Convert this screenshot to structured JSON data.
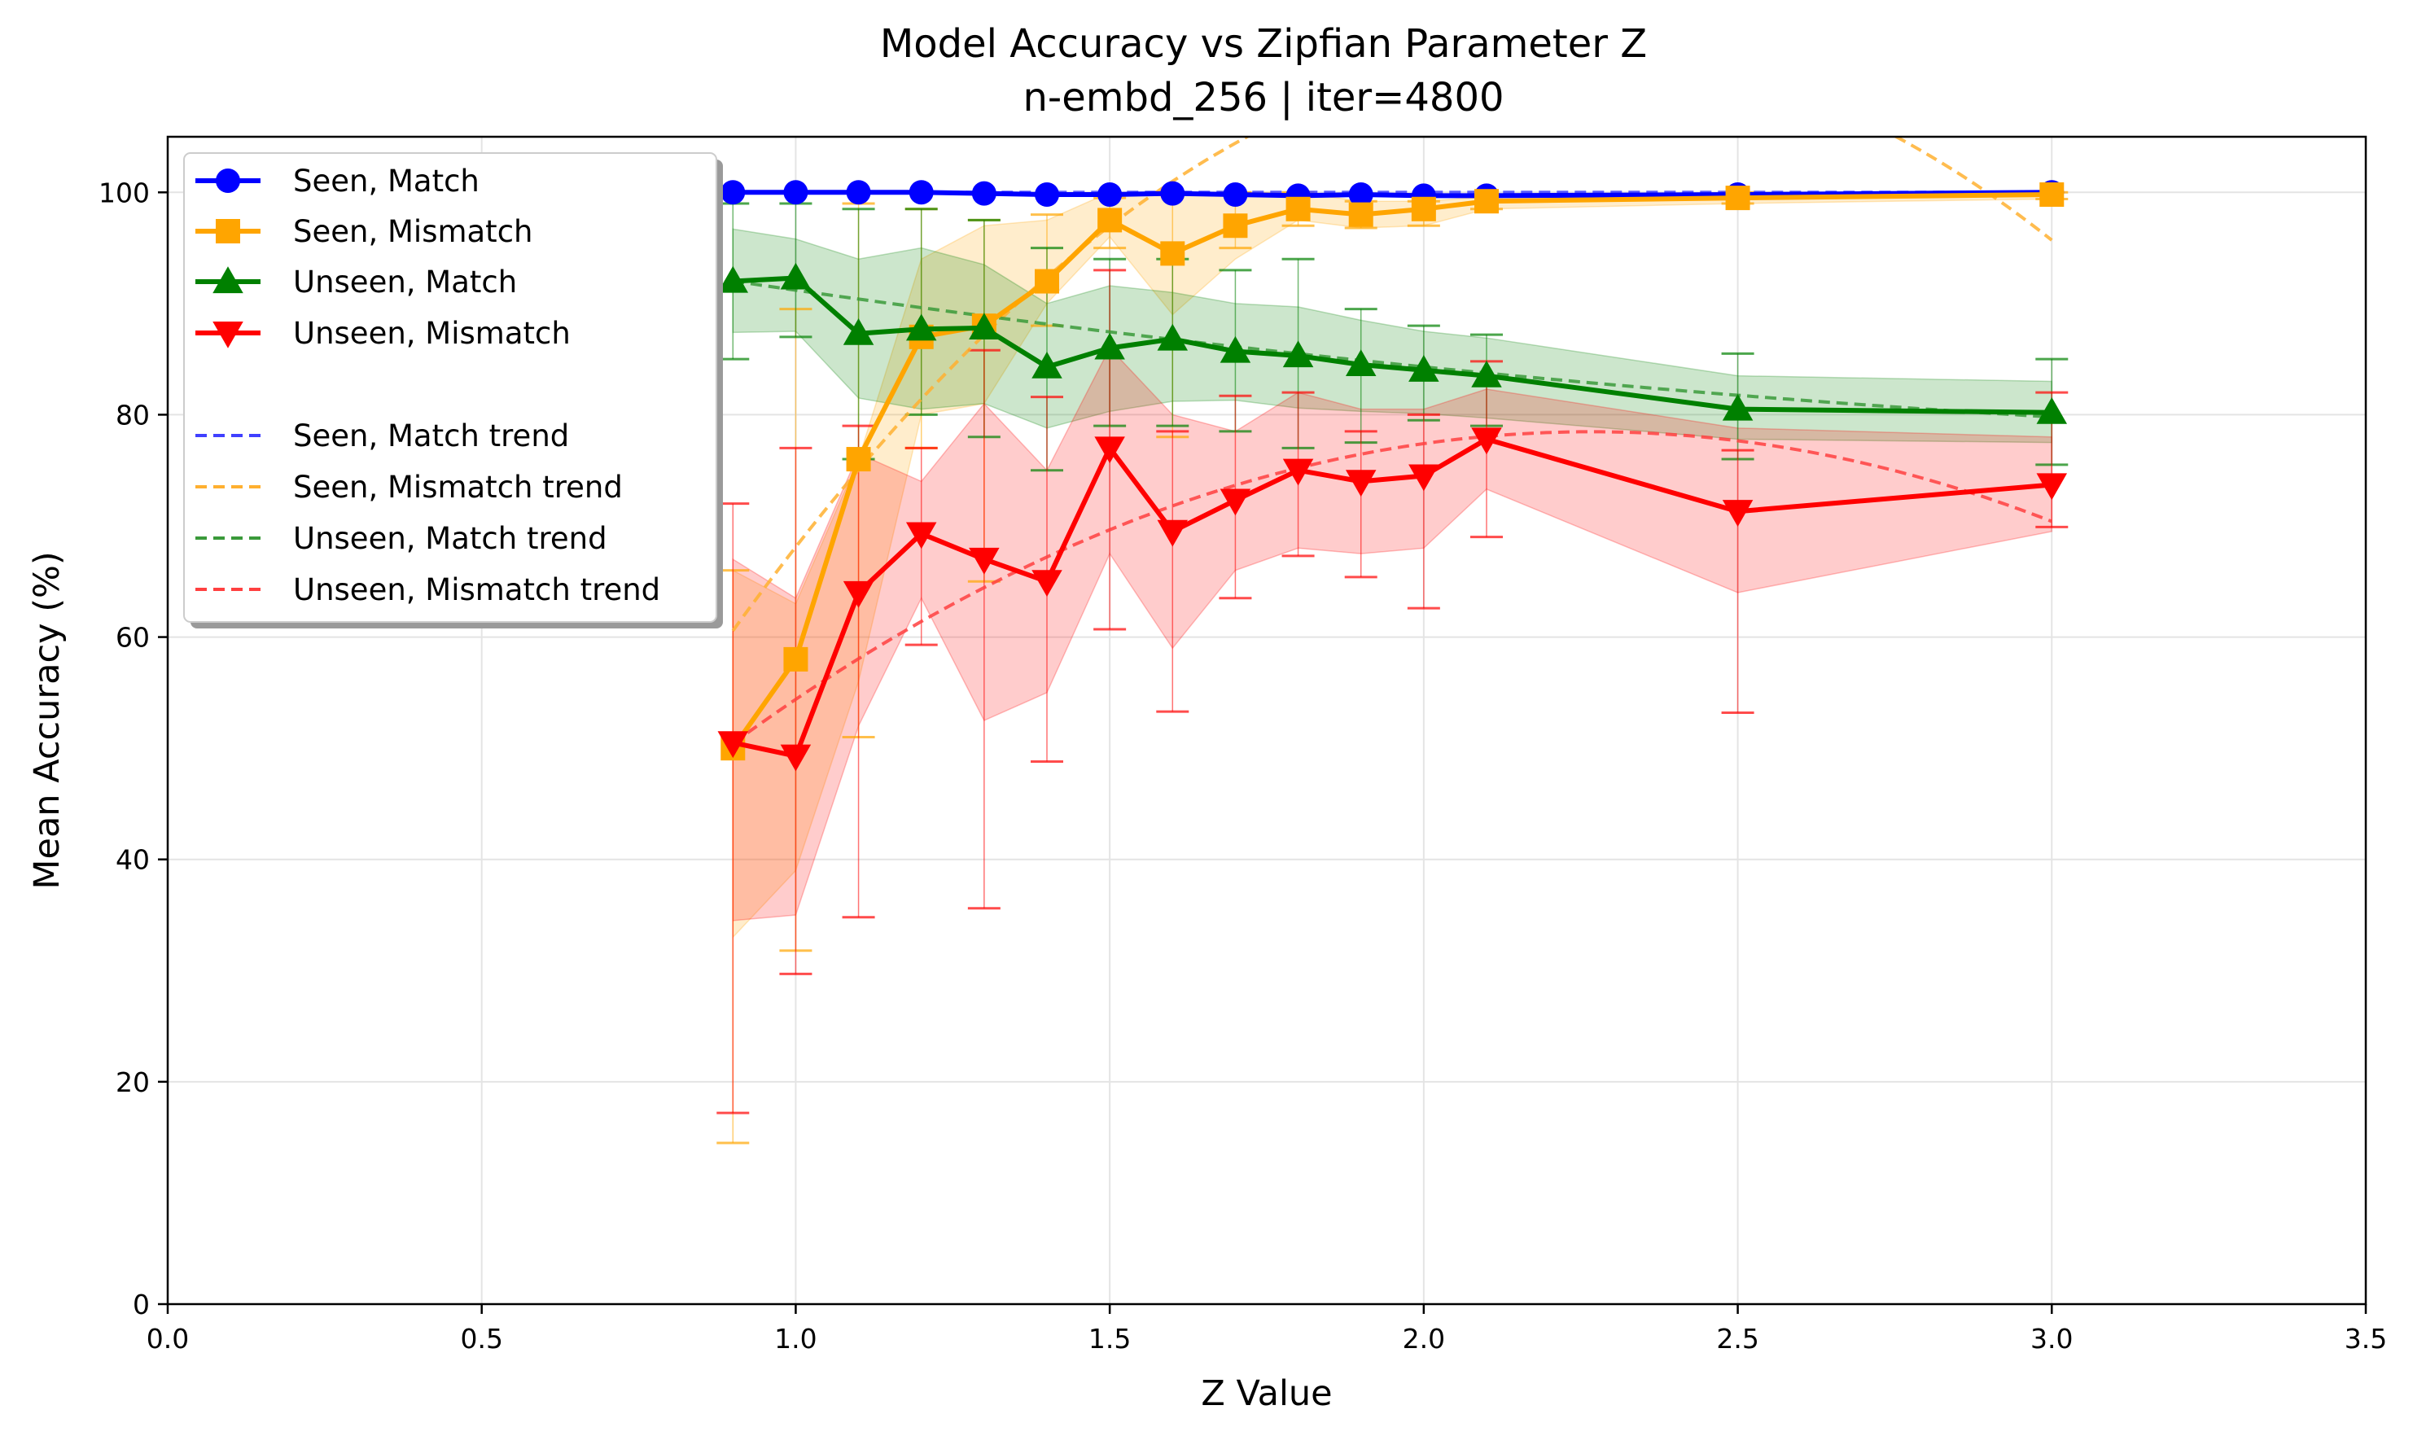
{
  "chart_data": {
    "type": "line",
    "title": "Model Accuracy vs Zipfian Parameter Z",
    "subtitle": "n-embd_256 | iter=4800",
    "xlabel": "Z Value",
    "ylabel": "Mean Accuracy (%)",
    "xlim": [
      0,
      3.5
    ],
    "ylim": [
      0,
      105
    ],
    "xticks": [
      0.0,
      0.5,
      1.0,
      1.5,
      2.0,
      2.5,
      3.0,
      3.5
    ],
    "xtick_labels": [
      "0.0",
      "0.5",
      "1.0",
      "1.5",
      "2.0",
      "2.5",
      "3.0",
      "3.5"
    ],
    "yticks": [
      0,
      20,
      40,
      60,
      80,
      100
    ],
    "ytick_labels": [
      "0",
      "20",
      "40",
      "60",
      "80",
      "100"
    ],
    "grid": true,
    "legend_position": "top-left",
    "x": [
      0.9,
      1.0,
      1.1,
      1.2,
      1.3,
      1.4,
      1.5,
      1.6,
      1.7,
      1.8,
      1.9,
      2.0,
      2.1,
      2.5,
      3.0
    ],
    "series": [
      {
        "name": "Seen, Match",
        "color": "#0000ff",
        "marker": "circle",
        "values": [
          100,
          100,
          100,
          100,
          99.9,
          99.8,
          99.8,
          99.9,
          99.8,
          99.7,
          99.8,
          99.7,
          99.7,
          99.8,
          100
        ],
        "band": [
          [
            100,
            100
          ],
          [
            100,
            100
          ],
          [
            100,
            100
          ],
          [
            100,
            100
          ],
          [
            99.9,
            99.9
          ],
          [
            99.8,
            99.8
          ],
          [
            99.8,
            99.8
          ],
          [
            99.9,
            99.9
          ],
          [
            99.8,
            99.8
          ],
          [
            99.7,
            99.7
          ],
          [
            99.8,
            99.8
          ],
          [
            99.7,
            99.7
          ],
          [
            99.7,
            99.7
          ],
          [
            99.8,
            99.8
          ],
          [
            100,
            100
          ]
        ],
        "errorbars": [
          [
            100,
            100
          ],
          [
            100,
            100
          ],
          [
            100,
            100
          ],
          [
            100,
            100
          ],
          [
            99.9,
            99.9
          ],
          [
            99.8,
            99.8
          ],
          [
            99.8,
            99.8
          ],
          [
            99.9,
            99.9
          ],
          [
            99.8,
            99.8
          ],
          [
            99.7,
            99.7
          ],
          [
            99.8,
            99.8
          ],
          [
            99.7,
            99.7
          ],
          [
            99.7,
            99.7
          ],
          [
            99.8,
            99.8
          ],
          [
            100,
            100
          ]
        ]
      },
      {
        "name": "Seen, Mismatch",
        "color": "#ffa500",
        "marker": "square",
        "values": [
          50,
          58,
          76,
          87,
          88,
          92,
          97.5,
          94.5,
          97,
          98.5,
          98,
          98.5,
          99.2,
          99.5,
          99.8
        ],
        "band": [
          [
            33,
            66
          ],
          [
            39,
            63
          ],
          [
            56,
            76
          ],
          [
            80,
            94
          ],
          [
            81,
            97
          ],
          [
            90,
            97.5
          ],
          [
            96,
            100
          ],
          [
            89,
            100
          ],
          [
            94,
            100
          ],
          [
            97.5,
            100
          ],
          [
            96.8,
            99.2
          ],
          [
            97,
            99.2
          ],
          [
            98.5,
            99.6
          ],
          [
            99,
            100
          ],
          [
            99.4,
            100
          ]
        ],
        "errorbars": [
          [
            14.5,
            66
          ],
          [
            31.8,
            89.5
          ],
          [
            51,
            99
          ],
          [
            77,
            98.5
          ],
          [
            65,
            97.5
          ],
          [
            88,
            98
          ],
          [
            95,
            99.5
          ],
          [
            78,
            100
          ],
          [
            95,
            100
          ],
          [
            97,
            100
          ],
          [
            96.8,
            99.2
          ],
          [
            97,
            99.2
          ],
          [
            98.5,
            99.6
          ],
          [
            99,
            100
          ],
          [
            99.4,
            100
          ]
        ]
      },
      {
        "name": "Unseen, Match",
        "color": "#008000",
        "marker": "triangle-up",
        "values": [
          92,
          92.3,
          87.3,
          87.7,
          87.8,
          84.3,
          86,
          86.8,
          85.7,
          85.3,
          84.5,
          84,
          83.5,
          80.5,
          80.2
        ],
        "band": [
          [
            87.4,
            96.7
          ],
          [
            87.5,
            95.8
          ],
          [
            81.5,
            94
          ],
          [
            80.5,
            95
          ],
          [
            81,
            93.5
          ],
          [
            78.8,
            90
          ],
          [
            80.3,
            91.6
          ],
          [
            81.2,
            91
          ],
          [
            81.3,
            90
          ],
          [
            80.6,
            89.7
          ],
          [
            80.3,
            88.5
          ],
          [
            80.1,
            87.5
          ],
          [
            79.7,
            86.9
          ],
          [
            77.8,
            83.5
          ],
          [
            77.5,
            83
          ]
        ],
        "errorbars": [
          [
            85,
            99
          ],
          [
            87,
            99
          ],
          [
            76,
            98.5
          ],
          [
            80,
            98.5
          ],
          [
            78,
            97.5
          ],
          [
            75,
            95
          ],
          [
            79,
            94
          ],
          [
            79,
            94
          ],
          [
            78.5,
            93
          ],
          [
            77,
            94
          ],
          [
            77.5,
            89.5
          ],
          [
            79.5,
            88
          ],
          [
            79,
            87.2
          ],
          [
            76,
            85.5
          ],
          [
            75.5,
            85
          ]
        ]
      },
      {
        "name": "Unseen, Mismatch",
        "color": "#ff0000",
        "marker": "triangle-down",
        "values": [
          50.5,
          49.3,
          64,
          69.3,
          67,
          65,
          77,
          69.5,
          72.3,
          75,
          74,
          74.5,
          77.8,
          71.3,
          73.7
        ],
        "band": [
          [
            34.5,
            67
          ],
          [
            35,
            63.5
          ],
          [
            52,
            76.5
          ],
          [
            63.5,
            74
          ],
          [
            52.5,
            81
          ],
          [
            55,
            75
          ],
          [
            67.5,
            86
          ],
          [
            59,
            80
          ],
          [
            66,
            78.5
          ],
          [
            68,
            82
          ],
          [
            67.5,
            80.5
          ],
          [
            68,
            80.5
          ],
          [
            73.3,
            82.3
          ],
          [
            64,
            78.8
          ],
          [
            69.5,
            78
          ]
        ],
        "errorbars": [
          [
            17.2,
            72
          ],
          [
            29.7,
            77
          ],
          [
            34.8,
            79
          ],
          [
            59.3,
            77
          ],
          [
            35.6,
            85.8
          ],
          [
            48.8,
            81.6
          ],
          [
            60.7,
            93
          ],
          [
            53.3,
            78.5
          ],
          [
            63.5,
            81.7
          ],
          [
            67.3,
            82
          ],
          [
            65.4,
            78.5
          ],
          [
            62.6,
            80
          ],
          [
            69,
            84.8
          ],
          [
            53.2,
            76.8
          ],
          [
            69.9,
            82
          ]
        ]
      }
    ],
    "trends": [
      {
        "name": "Seen, Match trend",
        "color": "#4040ff",
        "coeffs": [
          100,
          0,
          0
        ]
      },
      {
        "name": "Seen, Mismatch trend",
        "color": "#ffb030",
        "coeffs": [
          -33.6,
          131.0,
          -29.3
        ]
      },
      {
        "name": "Unseen, Match trend",
        "color": "#3a9a3a",
        "coeffs": [
          100.5,
          -10.5,
          1.2
        ]
      },
      {
        "name": "Unseen, Mismatch trend",
        "color": "#ff4040",
        "coeffs": [
          1.4,
          68.0,
          -15.0
        ]
      }
    ]
  }
}
